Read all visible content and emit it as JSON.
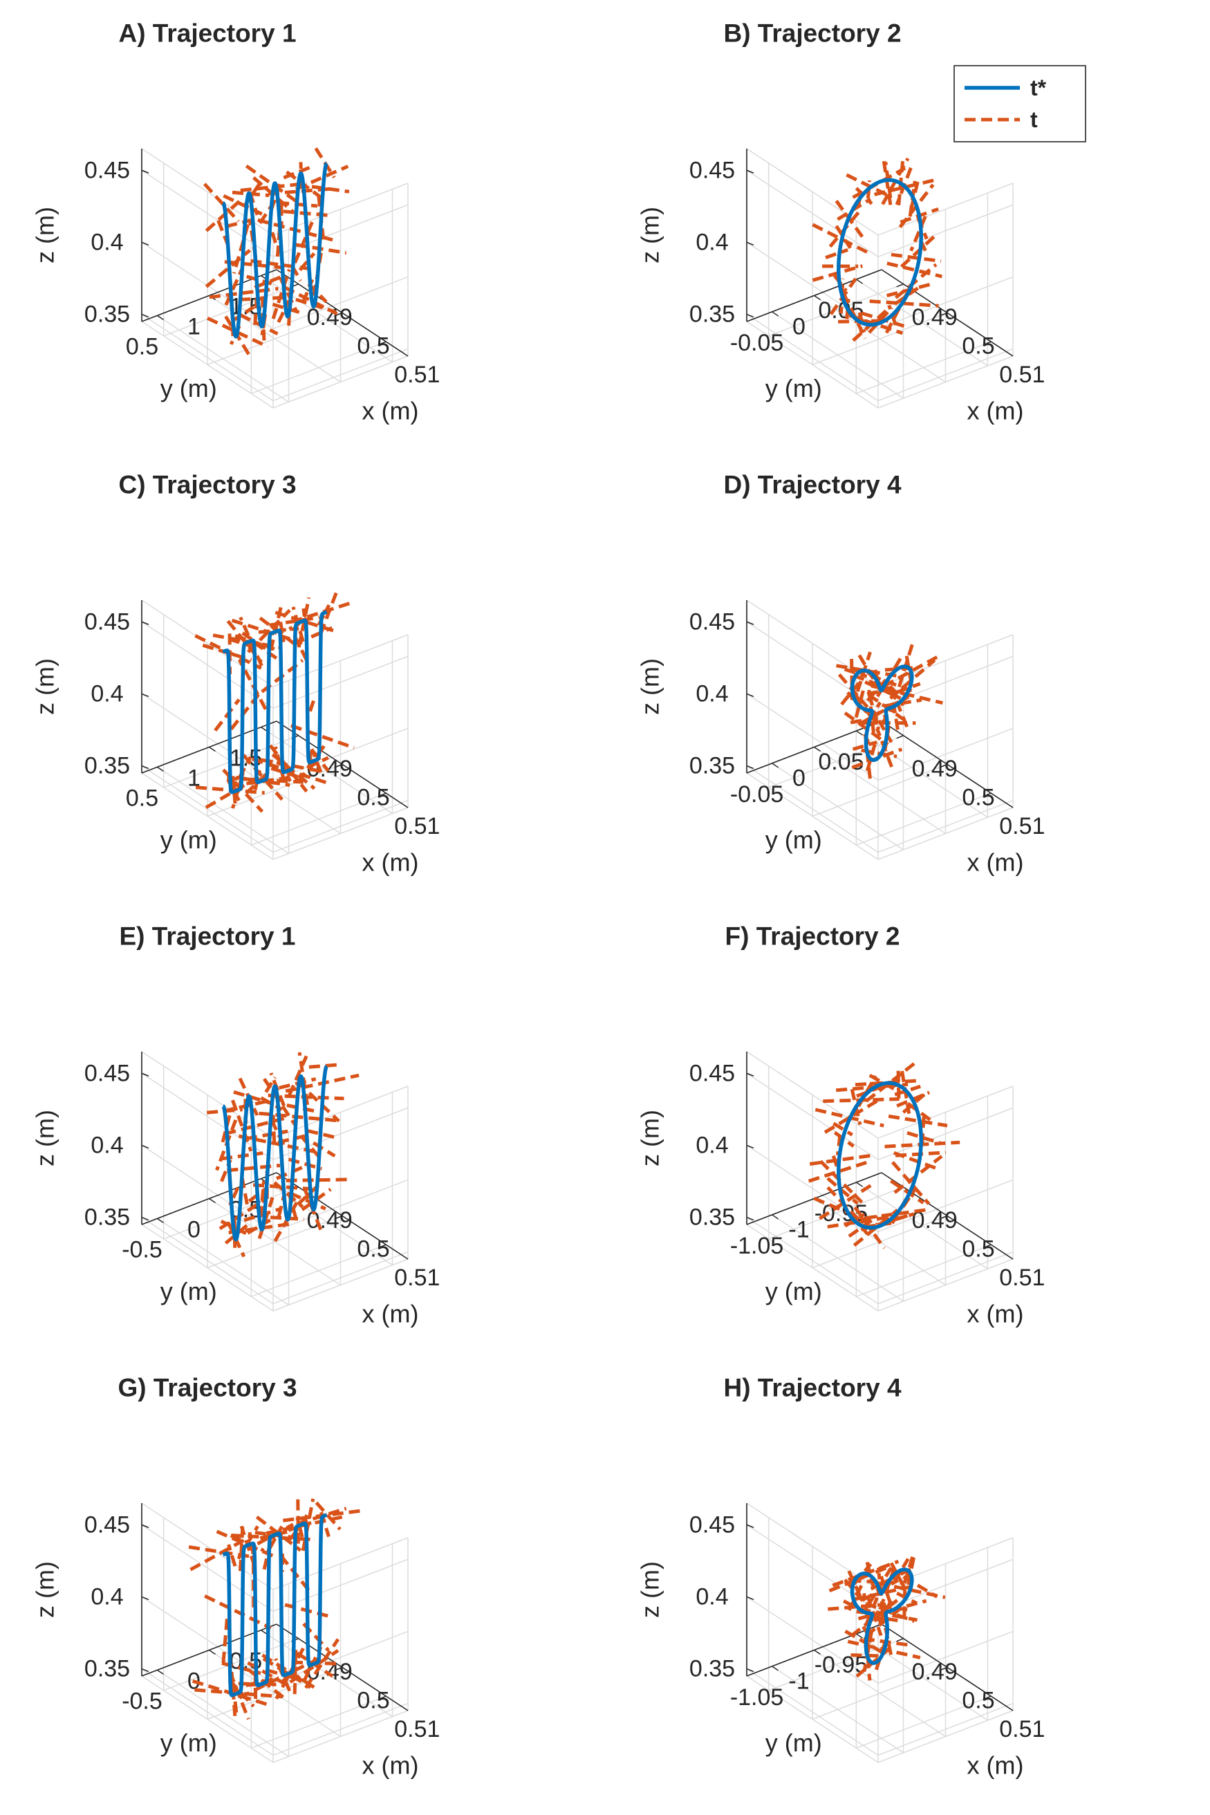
{
  "colors": {
    "target": "#0072BD",
    "measured": "#D95319",
    "axis": "#262626",
    "grid": "#dcdcdc"
  },
  "legend": {
    "entries": [
      {
        "label": "t*",
        "series": "t*"
      },
      {
        "label": "t",
        "series": "t"
      }
    ],
    "placement": "top-right of panel B"
  },
  "chart_data": [
    {
      "panel": "A",
      "type": "line",
      "projection": "3d",
      "title": "A) Trajectory 1",
      "xlabel": "x (m)",
      "ylabel": "y (m)",
      "zlabel": "z (m)",
      "xlim": [
        0.485,
        0.515
      ],
      "ylim": [
        0.35,
        1.65
      ],
      "zlim": [
        0.345,
        0.465
      ],
      "xticks": [
        "0.49",
        "0.5",
        "0.51"
      ],
      "yticks": [
        "1.5",
        "1",
        "0.5"
      ],
      "zticks": [
        "0.45",
        "0.4",
        "0.35"
      ],
      "grid": true,
      "curve": {
        "kind": "sine",
        "cycles": 4.0,
        "phase": 0.0,
        "amplitude": 0.048,
        "center": 0.405,
        "y_from": 1.5,
        "y_to": 0.5,
        "x": 0.5
      },
      "series": [
        {
          "name": "t*",
          "style": "solid",
          "color_key": "target"
        },
        {
          "name": "t",
          "style": "dashed",
          "color_key": "measured",
          "segment_count": 60,
          "noise": 0.35
        }
      ]
    },
    {
      "panel": "B",
      "type": "line",
      "projection": "3d",
      "title": "B) Trajectory 2",
      "xlabel": "x (m)",
      "ylabel": "y (m)",
      "zlabel": "z (m)",
      "xlim": [
        0.485,
        0.515
      ],
      "ylim": [
        -0.08,
        0.08
      ],
      "zlim": [
        0.345,
        0.465
      ],
      "xticks": [
        "0.49",
        "0.5",
        "0.51"
      ],
      "yticks": [
        "0.05",
        "0",
        "-0.05"
      ],
      "zticks": [
        "0.45",
        "0.4",
        "0.35"
      ],
      "grid": true,
      "curve": {
        "kind": "circle",
        "radius": 0.049,
        "z_center": 0.405,
        "y_center": 0.0,
        "x": 0.5,
        "lobes": 0
      },
      "series": [
        {
          "name": "t*",
          "style": "solid",
          "color_key": "target"
        },
        {
          "name": "t",
          "style": "dashed",
          "color_key": "measured",
          "segment_count": 48,
          "noise": 0.3
        }
      ],
      "show_legend": true
    },
    {
      "panel": "C",
      "type": "line",
      "projection": "3d",
      "title": "C) Trajectory 3",
      "xlabel": "x (m)",
      "ylabel": "y (m)",
      "zlabel": "z (m)",
      "xlim": [
        0.485,
        0.515
      ],
      "ylim": [
        0.35,
        1.65
      ],
      "zlim": [
        0.345,
        0.465
      ],
      "xticks": [
        "0.49",
        "0.5",
        "0.51"
      ],
      "yticks": [
        "1.5",
        "1",
        "0.5"
      ],
      "zticks": [
        "0.45",
        "0.4",
        "0.35"
      ],
      "grid": true,
      "curve": {
        "kind": "square-wave",
        "cycles": 4.0,
        "amplitude": 0.05,
        "center": 0.405,
        "y_from": 1.5,
        "y_to": 0.5,
        "x": 0.5
      },
      "series": [
        {
          "name": "t*",
          "style": "solid",
          "color_key": "target"
        },
        {
          "name": "t",
          "style": "dashed",
          "color_key": "measured",
          "segment_count": 60,
          "noise": 0.4
        }
      ]
    },
    {
      "panel": "D",
      "type": "line",
      "projection": "3d",
      "title": "D) Trajectory 4",
      "xlabel": "x (m)",
      "ylabel": "y (m)",
      "zlabel": "z (m)",
      "xlim": [
        0.485,
        0.515
      ],
      "ylim": [
        -0.08,
        0.08
      ],
      "zlim": [
        0.345,
        0.465
      ],
      "xticks": [
        "0.49",
        "0.5",
        "0.51"
      ],
      "yticks": [
        "0.05",
        "0",
        "-0.05"
      ],
      "zticks": [
        "0.45",
        "0.4",
        "0.35"
      ],
      "grid": true,
      "curve": {
        "kind": "trefoil",
        "radius": 0.038,
        "z_center": 0.405,
        "y_center": 0.0,
        "x": 0.5,
        "lobes": 3
      },
      "series": [
        {
          "name": "t*",
          "style": "solid",
          "color_key": "target"
        },
        {
          "name": "t",
          "style": "dashed",
          "color_key": "measured",
          "segment_count": 48,
          "noise": 0.25
        }
      ]
    },
    {
      "panel": "E",
      "type": "line",
      "projection": "3d",
      "title": "E) Trajectory 1",
      "xlabel": "x (m)",
      "ylabel": "y (m)",
      "zlabel": "z (m)",
      "xlim": [
        0.485,
        0.515
      ],
      "ylim": [
        -0.65,
        0.65
      ],
      "zlim": [
        0.345,
        0.465
      ],
      "xticks": [
        "0.49",
        "0.5",
        "0.51"
      ],
      "yticks": [
        "0.5",
        "0",
        "-0.5"
      ],
      "zticks": [
        "0.45",
        "0.4",
        "0.35"
      ],
      "grid": true,
      "curve": {
        "kind": "sine",
        "cycles": 4.0,
        "phase": 0.0,
        "amplitude": 0.048,
        "center": 0.405,
        "y_from": 0.5,
        "y_to": -0.5,
        "x": 0.5
      },
      "series": [
        {
          "name": "t*",
          "style": "solid",
          "color_key": "target"
        },
        {
          "name": "t",
          "style": "dashed",
          "color_key": "measured",
          "segment_count": 60,
          "noise": 0.45
        }
      ]
    },
    {
      "panel": "F",
      "type": "line",
      "projection": "3d",
      "title": "F) Trajectory 2",
      "xlabel": "x (m)",
      "ylabel": "y (m)",
      "zlabel": "z (m)",
      "xlim": [
        0.485,
        0.515
      ],
      "ylim": [
        -1.08,
        -0.92
      ],
      "zlim": [
        0.345,
        0.465
      ],
      "xticks": [
        "0.49",
        "0.5",
        "0.51"
      ],
      "yticks": [
        "-0.95",
        "-1",
        "-1.05"
      ],
      "zticks": [
        "0.45",
        "0.4",
        "0.35"
      ],
      "grid": true,
      "curve": {
        "kind": "circle",
        "radius": 0.049,
        "z_center": 0.405,
        "y_center": -1.0,
        "x": 0.5,
        "lobes": 0
      },
      "series": [
        {
          "name": "t*",
          "style": "solid",
          "color_key": "target"
        },
        {
          "name": "t",
          "style": "dashed",
          "color_key": "measured",
          "segment_count": 48,
          "noise": 0.3
        }
      ]
    },
    {
      "panel": "G",
      "type": "line",
      "projection": "3d",
      "title": "G) Trajectory 3",
      "xlabel": "x (m)",
      "ylabel": "y (m)",
      "zlabel": "z (m)",
      "xlim": [
        0.485,
        0.515
      ],
      "ylim": [
        -0.65,
        0.65
      ],
      "zlim": [
        0.345,
        0.465
      ],
      "xticks": [
        "0.49",
        "0.5",
        "0.51"
      ],
      "yticks": [
        "0.5",
        "0",
        "-0.5"
      ],
      "zticks": [
        "0.45",
        "0.4",
        "0.35"
      ],
      "grid": true,
      "curve": {
        "kind": "square-wave",
        "cycles": 4.0,
        "amplitude": 0.05,
        "center": 0.405,
        "y_from": 0.5,
        "y_to": -0.5,
        "x": 0.5
      },
      "series": [
        {
          "name": "t*",
          "style": "solid",
          "color_key": "target"
        },
        {
          "name": "t",
          "style": "dashed",
          "color_key": "measured",
          "segment_count": 60,
          "noise": 0.45
        }
      ]
    },
    {
      "panel": "H",
      "type": "line",
      "projection": "3d",
      "title": "H) Trajectory 4",
      "xlabel": "x (m)",
      "ylabel": "y (m)",
      "zlabel": "z (m)",
      "xlim": [
        0.485,
        0.515
      ],
      "ylim": [
        -1.08,
        -0.92
      ],
      "zlim": [
        0.345,
        0.465
      ],
      "xticks": [
        "0.49",
        "0.5",
        "0.51"
      ],
      "yticks": [
        "-0.95",
        "-1",
        "-1.05"
      ],
      "zticks": [
        "0.45",
        "0.4",
        "0.35"
      ],
      "grid": true,
      "curve": {
        "kind": "trefoil",
        "radius": 0.038,
        "z_center": 0.405,
        "y_center": -1.0,
        "x": 0.5,
        "lobes": 3
      },
      "series": [
        {
          "name": "t*",
          "style": "solid",
          "color_key": "target"
        },
        {
          "name": "t",
          "style": "dashed",
          "color_key": "measured",
          "segment_count": 48,
          "noise": 0.25
        }
      ]
    }
  ]
}
